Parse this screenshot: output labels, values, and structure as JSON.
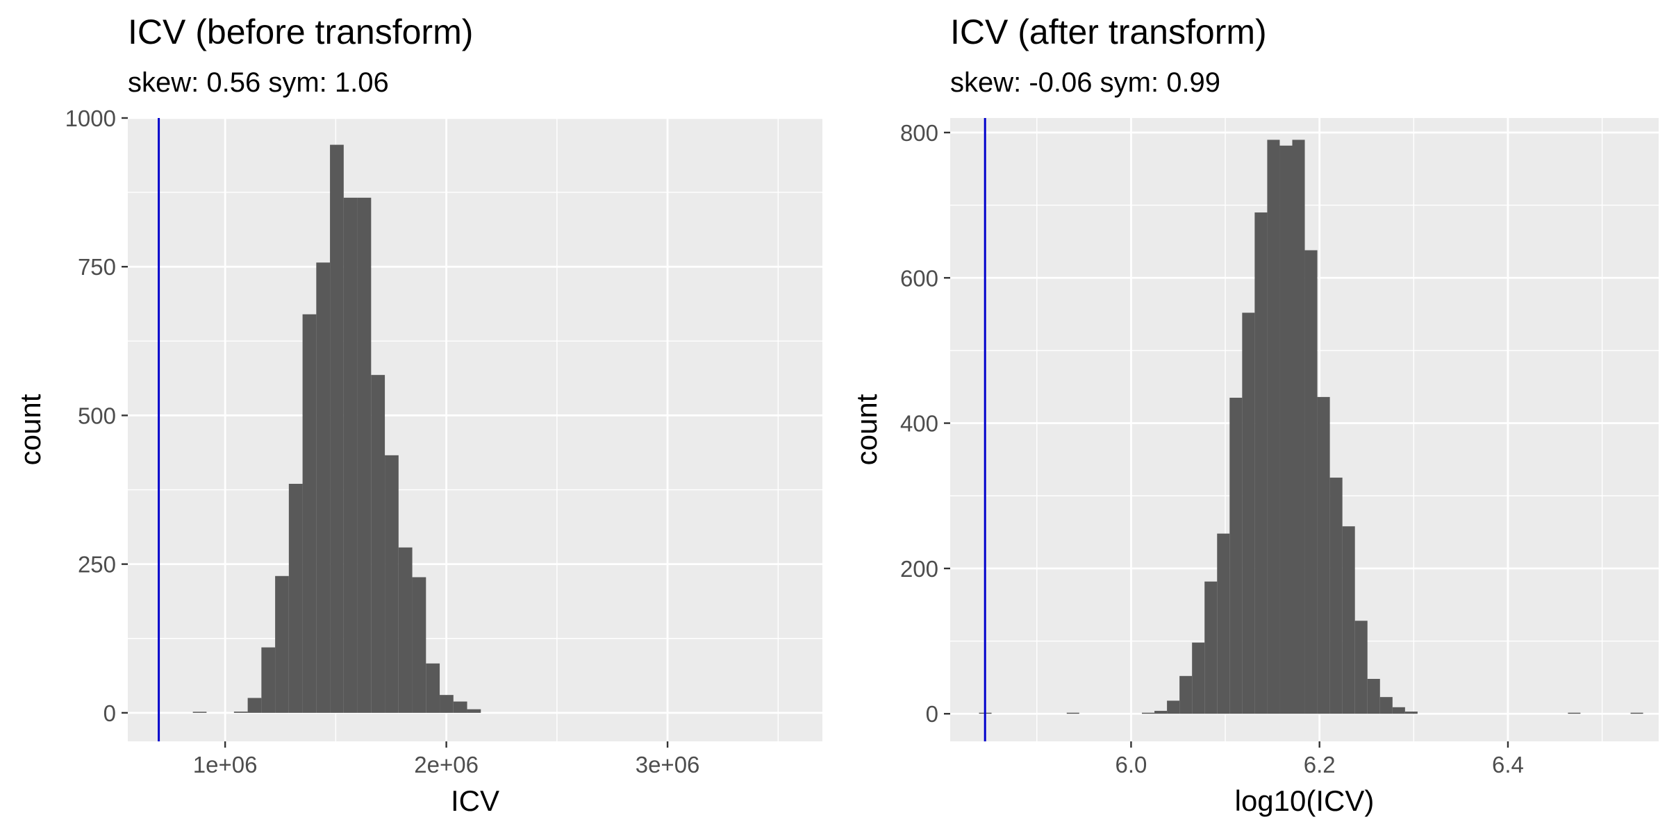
{
  "colors": {
    "panel_background": "#EBEBEB",
    "grid_major": "#FFFFFF",
    "grid_minor": "#F5F5F5",
    "bar_fill": "#595959",
    "reference_line": "#0000CC",
    "tick_mark": "#333333",
    "tick_label": "#4D4D4D",
    "text": "#000000"
  },
  "chart_data": [
    {
      "type": "histogram",
      "title": "ICV (before transform)",
      "subtitle": "skew: 0.56 sym: 1.06",
      "xlabel": "ICV",
      "ylabel": "count",
      "xlim": [
        560000,
        3700000
      ],
      "ylim": [
        -48,
        1000
      ],
      "grid": true,
      "legend": "none",
      "x_ticks": [
        {
          "value": 1000000,
          "label": "1e+06"
        },
        {
          "value": 2000000,
          "label": "2e+06"
        },
        {
          "value": 3000000,
          "label": "3e+06"
        }
      ],
      "y_ticks": [
        {
          "value": 0,
          "label": "0"
        },
        {
          "value": 250,
          "label": "250"
        },
        {
          "value": 500,
          "label": "500"
        },
        {
          "value": 750,
          "label": "750"
        },
        {
          "value": 1000,
          "label": "1000"
        }
      ],
      "reference_line_x": 700000,
      "bin_width": 62000,
      "bins": [
        {
          "x0": 854000,
          "count": 1
        },
        {
          "x0": 1040000,
          "count": 2
        },
        {
          "x0": 1102000,
          "count": 25
        },
        {
          "x0": 1164000,
          "count": 110
        },
        {
          "x0": 1226000,
          "count": 230
        },
        {
          "x0": 1288000,
          "count": 385
        },
        {
          "x0": 1350000,
          "count": 670
        },
        {
          "x0": 1412000,
          "count": 757
        },
        {
          "x0": 1474000,
          "count": 955
        },
        {
          "x0": 1536000,
          "count": 866
        },
        {
          "x0": 1598000,
          "count": 866
        },
        {
          "x0": 1660000,
          "count": 568
        },
        {
          "x0": 1722000,
          "count": 433
        },
        {
          "x0": 1784000,
          "count": 278
        },
        {
          "x0": 1846000,
          "count": 228
        },
        {
          "x0": 1908000,
          "count": 83
        },
        {
          "x0": 1970000,
          "count": 30
        },
        {
          "x0": 2032000,
          "count": 19
        },
        {
          "x0": 2094000,
          "count": 6
        }
      ]
    },
    {
      "type": "histogram",
      "title": "ICV (after transform)",
      "subtitle": "skew: -0.06 sym: 0.99",
      "xlabel": "log10(ICV)",
      "ylabel": "count",
      "xlim": [
        5.808,
        6.56
      ],
      "ylim": [
        -38,
        820
      ],
      "grid": true,
      "legend": "none",
      "x_ticks": [
        {
          "value": 6.0,
          "label": "6.0"
        },
        {
          "value": 6.2,
          "label": "6.2"
        },
        {
          "value": 6.4,
          "label": "6.4"
        }
      ],
      "y_ticks": [
        {
          "value": 0,
          "label": "0"
        },
        {
          "value": 200,
          "label": "200"
        },
        {
          "value": 400,
          "label": "400"
        },
        {
          "value": 600,
          "label": "600"
        },
        {
          "value": 800,
          "label": "800"
        }
      ],
      "reference_line_x": 5.845,
      "bin_width": 0.0133,
      "bins": [
        {
          "x0": 5.8386,
          "count": 1
        },
        {
          "x0": 5.9317,
          "count": 1
        },
        {
          "x0": 6.0115,
          "count": 1
        },
        {
          "x0": 6.0248,
          "count": 4
        },
        {
          "x0": 6.0381,
          "count": 18
        },
        {
          "x0": 6.0514,
          "count": 52
        },
        {
          "x0": 6.0647,
          "count": 98
        },
        {
          "x0": 6.078,
          "count": 182
        },
        {
          "x0": 6.0913,
          "count": 248
        },
        {
          "x0": 6.1046,
          "count": 435
        },
        {
          "x0": 6.1179,
          "count": 552
        },
        {
          "x0": 6.1312,
          "count": 690
        },
        {
          "x0": 6.1445,
          "count": 790
        },
        {
          "x0": 6.1578,
          "count": 782
        },
        {
          "x0": 6.1711,
          "count": 790
        },
        {
          "x0": 6.1844,
          "count": 638
        },
        {
          "x0": 6.1977,
          "count": 436
        },
        {
          "x0": 6.211,
          "count": 325
        },
        {
          "x0": 6.2243,
          "count": 258
        },
        {
          "x0": 6.2376,
          "count": 128
        },
        {
          "x0": 6.2509,
          "count": 48
        },
        {
          "x0": 6.2642,
          "count": 23
        },
        {
          "x0": 6.2775,
          "count": 9
        },
        {
          "x0": 6.2908,
          "count": 3
        },
        {
          "x0": 6.4637,
          "count": 1
        },
        {
          "x0": 6.5302,
          "count": 1
        }
      ]
    }
  ]
}
